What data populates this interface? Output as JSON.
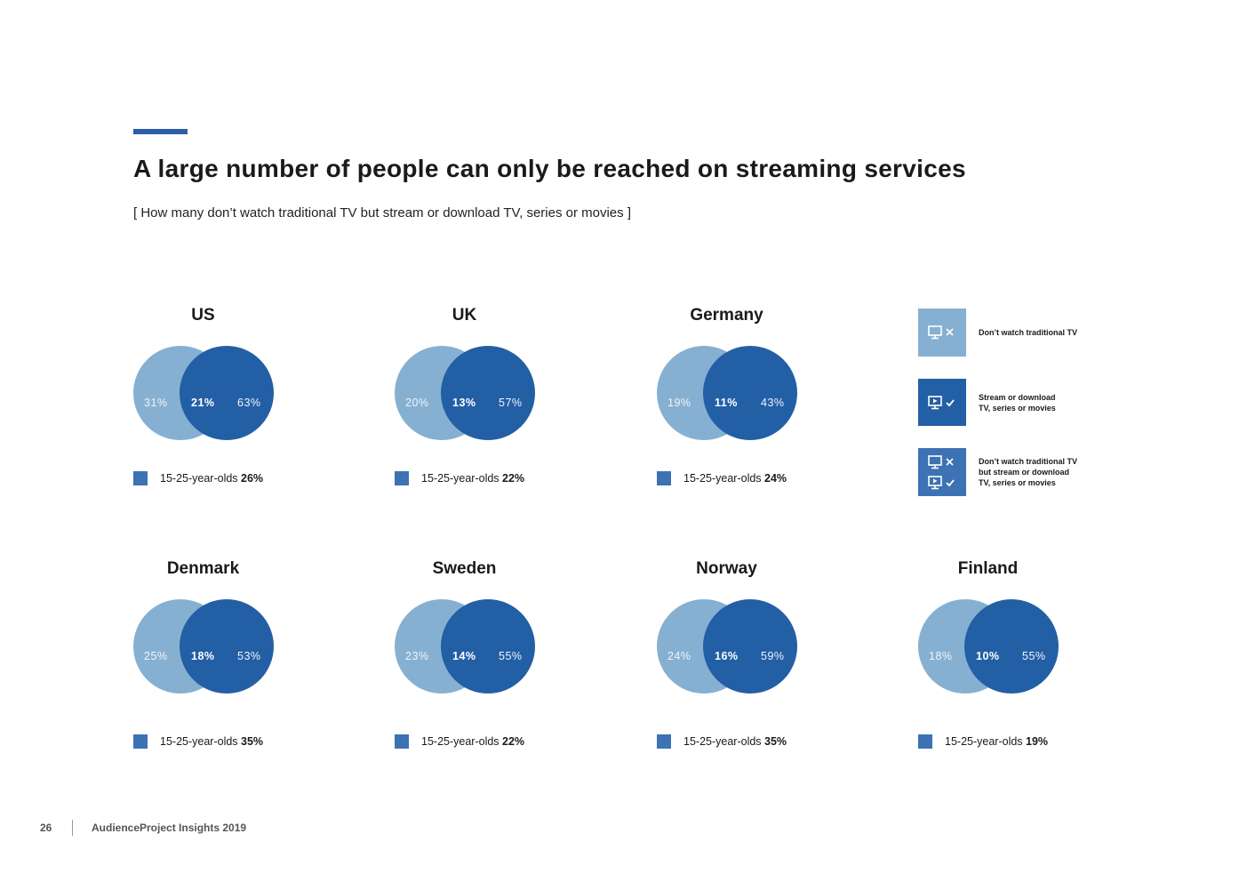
{
  "page": {
    "title": "A large number of people can only be reached on streaming services",
    "subtitle": "[ How many don’t watch traditional TV but stream or download TV, series or movies ]"
  },
  "colors": {
    "light_circle": "#86b0d1",
    "dark_circle": "#235fa5",
    "legend_square": "#3d72b4",
    "accent": "#2b5ea7"
  },
  "chart_data": {
    "type": "venn",
    "series_labels": [
      "Don’t watch traditional TV",
      "Stream or download TV, series or movies",
      "Don’t watch traditional TV but stream or download TV, series or movies"
    ],
    "countries": [
      {
        "name": "US",
        "no_tv": "31%",
        "overlap": "21%",
        "stream": "63%",
        "youth_label": "15-25-year-olds",
        "youth_value": "26%"
      },
      {
        "name": "UK",
        "no_tv": "20%",
        "overlap": "13%",
        "stream": "57%",
        "youth_label": "15-25-year-olds",
        "youth_value": "22%"
      },
      {
        "name": "Germany",
        "no_tv": "19%",
        "overlap": "11%",
        "stream": "43%",
        "youth_label": "15-25-year-olds",
        "youth_value": "24%"
      },
      {
        "name": "Denmark",
        "no_tv": "25%",
        "overlap": "18%",
        "stream": "53%",
        "youth_label": "15-25-year-olds",
        "youth_value": "35%"
      },
      {
        "name": "Sweden",
        "no_tv": "23%",
        "overlap": "14%",
        "stream": "55%",
        "youth_label": "15-25-year-olds",
        "youth_value": "22%"
      },
      {
        "name": "Norway",
        "no_tv": "24%",
        "overlap": "16%",
        "stream": "59%",
        "youth_label": "15-25-year-olds",
        "youth_value": "35%"
      },
      {
        "name": "Finland",
        "no_tv": "18%",
        "overlap": "10%",
        "stream": "55%",
        "youth_label": "15-25-year-olds",
        "youth_value": "19%"
      }
    ]
  },
  "legend": {
    "items": [
      {
        "label": "Don’t watch traditional TV",
        "icon": "tv-cross-icon"
      },
      {
        "label_line1": "Stream or download",
        "label_line2": "TV, series or movies",
        "icon": "tv-play-check-icon"
      },
      {
        "label_line1": "Don’t watch traditional TV",
        "label_line2": "but stream or download",
        "label_line3": "TV, series or movies",
        "icon": "tv-cross-and-play-check-icon"
      }
    ]
  },
  "footer": {
    "page_number": "26",
    "publication": "AudienceProject Insights 2019"
  }
}
